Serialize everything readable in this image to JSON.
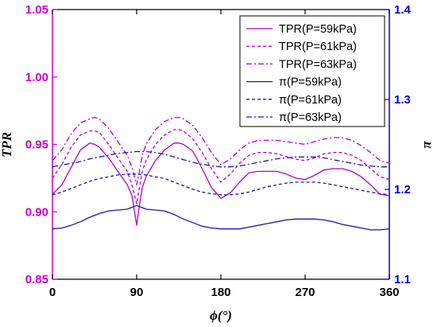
{
  "chart_data": {
    "type": "line",
    "xlabel": "ϕ(°)",
    "ylabel_left": "TPR",
    "ylabel_right": "π",
    "xlim": [
      0,
      360
    ],
    "ylim_left": [
      0.85,
      1.05
    ],
    "ylim_right": [
      1.1,
      1.4
    ],
    "xticks": [
      0,
      90,
      180,
      270,
      360
    ],
    "xtick_labels": [
      "0",
      "90",
      "180",
      "270",
      "360"
    ],
    "yticks_left": [
      0.85,
      0.9,
      0.95,
      1.0,
      1.05
    ],
    "ytick_labels_left": [
      "0.85",
      "0.90",
      "0.95",
      "1.00",
      "1.05"
    ],
    "yticks_right": [
      1.1,
      1.2,
      1.3,
      1.4
    ],
    "ytick_labels_right": [
      "1.1",
      "1.2",
      "1.3",
      "1.4"
    ],
    "grid": false,
    "legend_position": "top-right",
    "colors": {
      "left_axis": "#cc00cc",
      "right_axis": "#0000cc",
      "tpr": "#b300cc",
      "pi": "#1a1aaa"
    },
    "series": [
      {
        "name": "TPR(P=59kPa)",
        "axis": "left",
        "dash": "solid",
        "color": "#b300cc",
        "x": [
          0,
          10,
          20,
          30,
          40,
          45,
          50,
          60,
          70,
          80,
          85,
          90,
          93,
          96,
          100,
          110,
          120,
          130,
          135,
          140,
          150,
          160,
          170,
          180,
          190,
          200,
          210,
          220,
          230,
          240,
          250,
          260,
          270,
          280,
          290,
          300,
          310,
          320,
          330,
          340,
          350,
          360
        ],
        "y": [
          0.913,
          0.92,
          0.933,
          0.946,
          0.951,
          0.95,
          0.948,
          0.94,
          0.93,
          0.92,
          0.912,
          0.89,
          0.905,
          0.918,
          0.926,
          0.938,
          0.946,
          0.951,
          0.951,
          0.95,
          0.945,
          0.932,
          0.918,
          0.91,
          0.914,
          0.922,
          0.929,
          0.93,
          0.93,
          0.93,
          0.928,
          0.925,
          0.924,
          0.927,
          0.931,
          0.932,
          0.932,
          0.93,
          0.926,
          0.92,
          0.913,
          0.912
        ]
      },
      {
        "name": "TPR(P=61kPa)",
        "axis": "left",
        "dash": "dash",
        "color": "#b300cc",
        "x": [
          0,
          10,
          20,
          30,
          40,
          45,
          50,
          60,
          70,
          80,
          85,
          90,
          93,
          96,
          100,
          110,
          120,
          130,
          135,
          140,
          150,
          160,
          170,
          180,
          190,
          200,
          210,
          220,
          230,
          240,
          250,
          260,
          270,
          280,
          290,
          300,
          310,
          320,
          330,
          340,
          350,
          360
        ],
        "y": [
          0.925,
          0.935,
          0.948,
          0.957,
          0.96,
          0.96,
          0.959,
          0.95,
          0.94,
          0.93,
          0.92,
          0.906,
          0.918,
          0.93,
          0.938,
          0.95,
          0.957,
          0.961,
          0.961,
          0.96,
          0.954,
          0.944,
          0.932,
          0.922,
          0.928,
          0.936,
          0.942,
          0.944,
          0.944,
          0.943,
          0.941,
          0.939,
          0.938,
          0.94,
          0.943,
          0.944,
          0.944,
          0.942,
          0.938,
          0.932,
          0.926,
          0.924
        ]
      },
      {
        "name": "TPR(P=63kPa)",
        "axis": "left",
        "dash": "dashdot",
        "color": "#b300cc",
        "x": [
          0,
          10,
          20,
          30,
          40,
          45,
          50,
          60,
          70,
          80,
          85,
          90,
          93,
          96,
          100,
          110,
          120,
          130,
          135,
          140,
          150,
          160,
          170,
          180,
          190,
          200,
          210,
          220,
          230,
          240,
          250,
          260,
          270,
          280,
          290,
          300,
          310,
          320,
          330,
          340,
          350,
          360
        ],
        "y": [
          0.938,
          0.946,
          0.958,
          0.966,
          0.969,
          0.97,
          0.969,
          0.962,
          0.952,
          0.942,
          0.933,
          0.92,
          0.93,
          0.942,
          0.95,
          0.961,
          0.967,
          0.97,
          0.97,
          0.969,
          0.964,
          0.955,
          0.944,
          0.935,
          0.939,
          0.946,
          0.951,
          0.953,
          0.953,
          0.953,
          0.952,
          0.951,
          0.95,
          0.952,
          0.954,
          0.955,
          0.955,
          0.953,
          0.949,
          0.944,
          0.938,
          0.936
        ]
      },
      {
        "name": "π(P=59kPa)",
        "axis": "right",
        "dash": "solid",
        "color": "#1a1aaa",
        "x": [
          0,
          10,
          20,
          30,
          40,
          50,
          60,
          70,
          80,
          85,
          90,
          95,
          100,
          110,
          120,
          130,
          140,
          150,
          160,
          170,
          180,
          190,
          200,
          210,
          220,
          230,
          240,
          250,
          260,
          270,
          280,
          290,
          300,
          310,
          320,
          330,
          340,
          350,
          360
        ],
        "y": [
          1.156,
          1.157,
          1.16,
          1.164,
          1.169,
          1.173,
          1.176,
          1.177,
          1.178,
          1.18,
          1.182,
          1.18,
          1.178,
          1.177,
          1.176,
          1.172,
          1.167,
          1.163,
          1.159,
          1.157,
          1.156,
          1.156,
          1.156,
          1.158,
          1.16,
          1.162,
          1.164,
          1.166,
          1.167,
          1.167,
          1.167,
          1.166,
          1.164,
          1.161,
          1.159,
          1.157,
          1.155,
          1.155,
          1.156
        ]
      },
      {
        "name": "π(P=61kPa)",
        "axis": "right",
        "dash": "dash",
        "color": "#1a1aaa",
        "x": [
          0,
          10,
          20,
          30,
          40,
          50,
          60,
          70,
          80,
          90,
          100,
          110,
          120,
          130,
          140,
          150,
          160,
          170,
          180,
          190,
          200,
          210,
          220,
          230,
          240,
          250,
          260,
          270,
          280,
          290,
          300,
          310,
          320,
          330,
          340,
          350,
          360
        ],
        "y": [
          1.194,
          1.197,
          1.201,
          1.205,
          1.209,
          1.212,
          1.214,
          1.216,
          1.217,
          1.217,
          1.216,
          1.214,
          1.212,
          1.208,
          1.204,
          1.2,
          1.197,
          1.195,
          1.194,
          1.194,
          1.195,
          1.197,
          1.2,
          1.203,
          1.205,
          1.207,
          1.208,
          1.208,
          1.208,
          1.207,
          1.205,
          1.203,
          1.201,
          1.199,
          1.197,
          1.195,
          1.194
        ]
      },
      {
        "name": "π(P=63kPa)",
        "axis": "right",
        "dash": "dashdot",
        "color": "#1a1aaa",
        "x": [
          0,
          10,
          20,
          30,
          40,
          50,
          60,
          70,
          80,
          90,
          100,
          110,
          120,
          130,
          140,
          150,
          160,
          170,
          180,
          190,
          200,
          210,
          220,
          230,
          240,
          250,
          260,
          270,
          280,
          290,
          300,
          310,
          320,
          330,
          340,
          350,
          360
        ],
        "y": [
          1.225,
          1.227,
          1.229,
          1.231,
          1.234,
          1.236,
          1.238,
          1.24,
          1.241,
          1.242,
          1.242,
          1.241,
          1.239,
          1.236,
          1.233,
          1.23,
          1.228,
          1.226,
          1.225,
          1.225,
          1.226,
          1.228,
          1.23,
          1.232,
          1.234,
          1.235,
          1.236,
          1.236,
          1.236,
          1.235,
          1.233,
          1.231,
          1.229,
          1.227,
          1.226,
          1.225,
          1.225
        ]
      }
    ]
  }
}
